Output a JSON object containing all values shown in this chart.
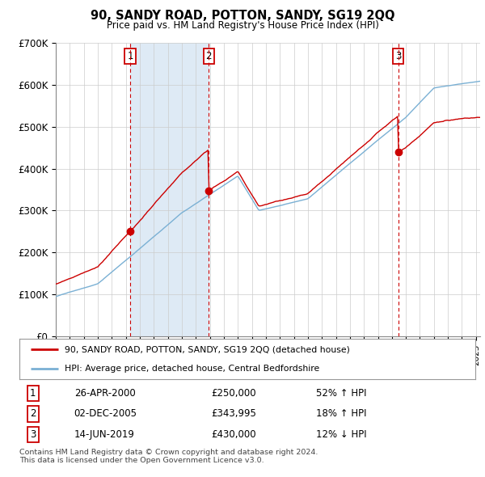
{
  "title": "90, SANDY ROAD, POTTON, SANDY, SG19 2QQ",
  "subtitle": "Price paid vs. HM Land Registry's House Price Index (HPI)",
  "ylim": [
    0,
    700000
  ],
  "yticks": [
    0,
    100000,
    200000,
    300000,
    400000,
    500000,
    600000,
    700000
  ],
  "ytick_labels": [
    "£0",
    "£100K",
    "£200K",
    "£300K",
    "£400K",
    "£500K",
    "£600K",
    "£700K"
  ],
  "xlim_start": 1995,
  "xlim_end": 2025.3,
  "transactions": [
    {
      "num": 1,
      "date": "26-APR-2000",
      "price": 250000,
      "hpi_rel": "52% ↑ HPI",
      "x": 2000.32
    },
    {
      "num": 2,
      "date": "02-DEC-2005",
      "price": 343995,
      "hpi_rel": "18% ↑ HPI",
      "x": 2005.92
    },
    {
      "num": 3,
      "date": "14-JUN-2019",
      "price": 430000,
      "hpi_rel": "12% ↓ HPI",
      "x": 2019.45
    }
  ],
  "vline_color": "#cc0000",
  "price_line_color": "#cc0000",
  "hpi_line_color": "#7ab0d4",
  "hpi_fill_color": "#deeaf5",
  "dot_color": "#cc0000",
  "legend_price_label": "90, SANDY ROAD, POTTON, SANDY, SG19 2QQ (detached house)",
  "legend_hpi_label": "HPI: Average price, detached house, Central Bedfordshire",
  "footnote": "Contains HM Land Registry data © Crown copyright and database right 2024.\nThis data is licensed under the Open Government Licence v3.0.",
  "box_color": "#cc0000",
  "background_color": "#ffffff",
  "plot_bg_color": "#ffffff",
  "grid_color": "#cccccc"
}
